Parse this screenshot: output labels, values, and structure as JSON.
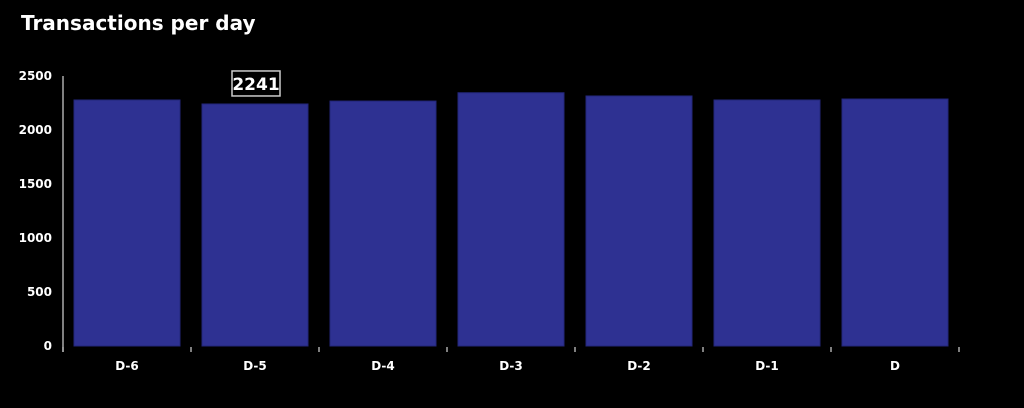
{
  "chart_data": {
    "type": "bar",
    "title": "Transactions per day",
    "categories": [
      "D-6",
      "D-5",
      "D-4",
      "D-3",
      "D-2",
      "D-1",
      "D"
    ],
    "values": [
      2278,
      2241,
      2268,
      2345,
      2315,
      2278,
      2287
    ],
    "ylim": [
      0,
      2500
    ],
    "yticks": [
      0,
      500,
      1000,
      1500,
      2000,
      2500
    ],
    "grid": false,
    "highlighted_label": {
      "category": "D-5",
      "text": "2241"
    },
    "colors": {
      "bar": "#2e3192",
      "bar_border": "#23267a",
      "background": "#000000",
      "text": "#ffffff",
      "axis": "#aaaaaa"
    }
  }
}
